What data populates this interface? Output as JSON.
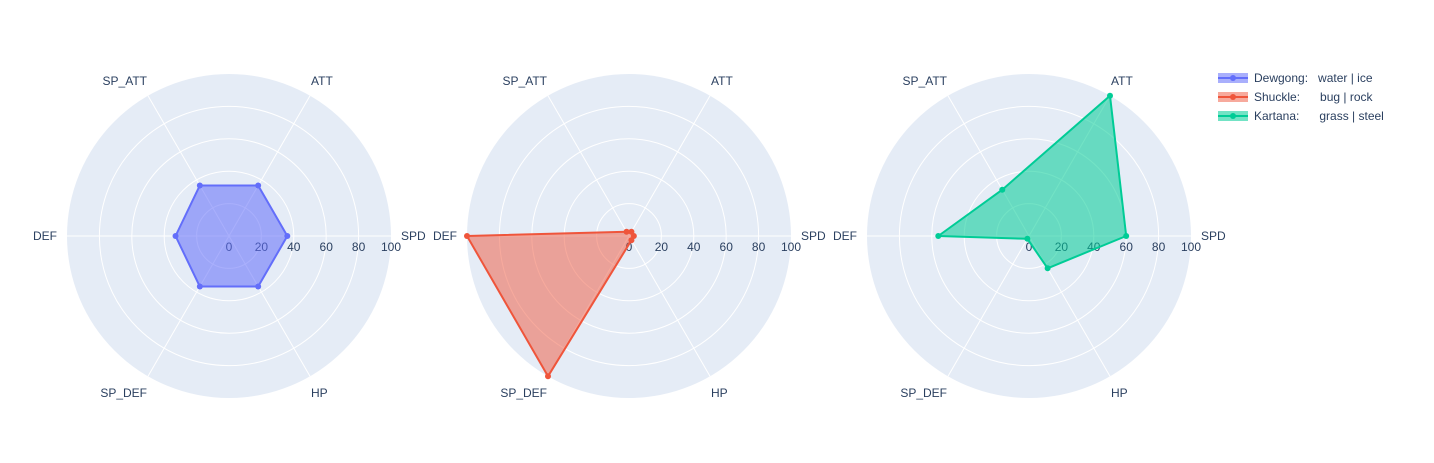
{
  "chart_data": {
    "type": "radar",
    "axes": [
      "SPD",
      "ATT",
      "SP_ATT",
      "DEF",
      "SP_DEF",
      "HP"
    ],
    "radial_range": [
      0,
      100
    ],
    "radial_ticks": [
      0,
      20,
      40,
      60,
      80,
      100
    ],
    "grid": true,
    "legend_position": "top-right",
    "series": [
      {
        "name": "Dewgong:   water | ice",
        "color": "#636efa",
        "fill": "rgba(99,110,250,0.55)",
        "values": [
          36,
          36,
          36,
          33,
          36,
          36
        ]
      },
      {
        "name": "Shuckle:      bug | rock",
        "color": "#ef553b",
        "fill": "rgba(239,85,59,0.5)",
        "values": [
          3,
          3,
          3,
          100,
          100,
          3
        ]
      },
      {
        "name": "Kartana:      grass | steel",
        "color": "#00cc96",
        "fill": "rgba(0,204,150,0.55)",
        "values": [
          60,
          100,
          33,
          56,
          2,
          23
        ]
      }
    ]
  }
}
